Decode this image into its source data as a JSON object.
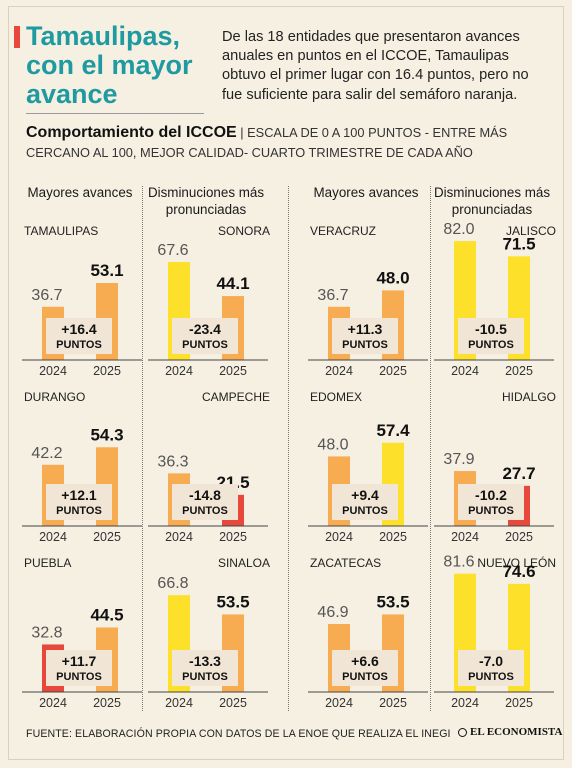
{
  "header": {
    "title": "Tamaulipas, con el mayor avance",
    "intro": "De las 18 entidades que presentaron avances anuales en puntos en el ICCOE, Tamaulipas obtuvo el primer lugar con 16.4 puntos, pero no fue suficiente para salir del semáforo naranja.",
    "subtitle_bold": "Comportamiento del ICCOE",
    "subtitle_sep": " | ",
    "subtitle_rest": "ESCALA DE 0 A 100 PUNTOS - ENTRE MÁS CERCANO AL 100, MEJOR CALIDAD- CUARTO TRIMESTRE DE CADA AÑO"
  },
  "column_heads": [
    "Mayores avances",
    "Disminuciones más pronunciadas",
    "Mayores avances",
    "Disminuciones más pronunciadas"
  ],
  "colors": {
    "orange": "#f8ac52",
    "yellow": "#fde02a",
    "red": "#e8483b",
    "box": "#f1e6d6",
    "accent": "#1e9aa0"
  },
  "chart_data": {
    "type": "bar",
    "ylim": [
      0,
      100
    ],
    "categories": [
      "2024",
      "2025"
    ],
    "unit_label": "PUNTOS",
    "panels": [
      {
        "state": "TAMAULIPAS",
        "values": [
          36.7,
          53.1
        ],
        "change": "+16.4",
        "colors": [
          "orange",
          "orange"
        ]
      },
      {
        "state": "SONORA",
        "values": [
          67.6,
          44.1
        ],
        "change": "-23.4",
        "colors": [
          "yellow",
          "orange"
        ]
      },
      {
        "state": "VERACRUZ",
        "values": [
          36.7,
          48.0
        ],
        "change": "+11.3",
        "colors": [
          "orange",
          "orange"
        ]
      },
      {
        "state": "JALISCO",
        "values": [
          82.0,
          71.5
        ],
        "change": "-10.5",
        "colors": [
          "yellow",
          "yellow"
        ]
      },
      {
        "state": "DURANGO",
        "values": [
          42.2,
          54.3
        ],
        "change": "+12.1",
        "colors": [
          "orange",
          "orange"
        ]
      },
      {
        "state": "CAMPECHE",
        "values": [
          36.3,
          21.5
        ],
        "change": "-14.8",
        "colors": [
          "orange",
          "red"
        ]
      },
      {
        "state": "EDOMEX",
        "values": [
          48.0,
          57.4
        ],
        "change": "+9.4",
        "colors": [
          "orange",
          "yellow"
        ]
      },
      {
        "state": "HIDALGO",
        "values": [
          37.9,
          27.7
        ],
        "change": "-10.2",
        "colors": [
          "orange",
          "red"
        ]
      },
      {
        "state": "PUEBLA",
        "values": [
          32.8,
          44.5
        ],
        "change": "+11.7",
        "colors": [
          "red",
          "orange"
        ]
      },
      {
        "state": "SINALOA",
        "values": [
          66.8,
          53.5
        ],
        "change": "-13.3",
        "colors": [
          "yellow",
          "orange"
        ]
      },
      {
        "state": "ZACATECAS",
        "values": [
          46.9,
          53.5
        ],
        "change": "+6.6",
        "colors": [
          "orange",
          "orange"
        ]
      },
      {
        "state": "NUEVO LEÓN",
        "values": [
          81.6,
          74.6
        ],
        "change": "-7.0",
        "colors": [
          "yellow",
          "yellow"
        ]
      }
    ]
  },
  "footer": {
    "source": "FUENTE: ELABORACIÓN PROPIA CON DATOS DE LA ENOE QUE REALIZA EL INEGI",
    "brand": "EL ECONOMISTA"
  }
}
